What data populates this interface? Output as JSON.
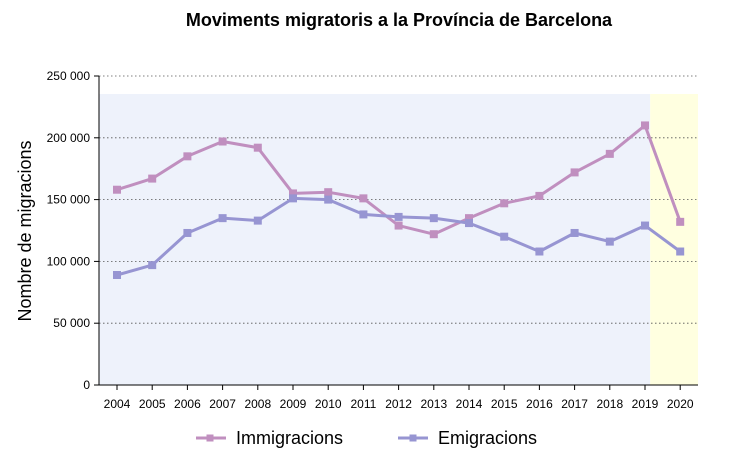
{
  "chart_data": {
    "type": "line",
    "title": "Moviments migratoris a la Província de Barcelona",
    "xlabel": "",
    "ylabel": "Nombre de migracions",
    "categories": [
      "2004",
      "2005",
      "2006",
      "2007",
      "2008",
      "2009",
      "2010",
      "2011",
      "2012",
      "2013",
      "2014",
      "2015",
      "2016",
      "2017",
      "2018",
      "2019",
      "2020"
    ],
    "ylim": [
      0,
      250000
    ],
    "yticks": [
      0,
      50000,
      100000,
      150000,
      200000,
      250000
    ],
    "ytick_labels": [
      "0",
      "50 000",
      "100 000",
      "150 000",
      "200 000",
      "250 000"
    ],
    "grid": "horizontal dotted",
    "highlight_category": "2020",
    "series": [
      {
        "name": "Immigracions",
        "color": "#c08fbf",
        "values": [
          158000,
          167000,
          185000,
          197000,
          192000,
          155000,
          156000,
          151000,
          129000,
          122000,
          135000,
          147000,
          153000,
          172000,
          187000,
          210000,
          132000
        ]
      },
      {
        "name": "Emigracions",
        "color": "#9795d2",
        "values": [
          89000,
          97000,
          123000,
          135000,
          133000,
          151000,
          150000,
          138000,
          136000,
          135000,
          131000,
          120000,
          108000,
          123000,
          116000,
          129000,
          108000
        ]
      }
    ],
    "legend": {
      "placement": "bottom-center"
    }
  },
  "colors": {
    "plot_background": "#eef2fb",
    "highlight_background": "#ffffe0",
    "grid": "#555555"
  }
}
